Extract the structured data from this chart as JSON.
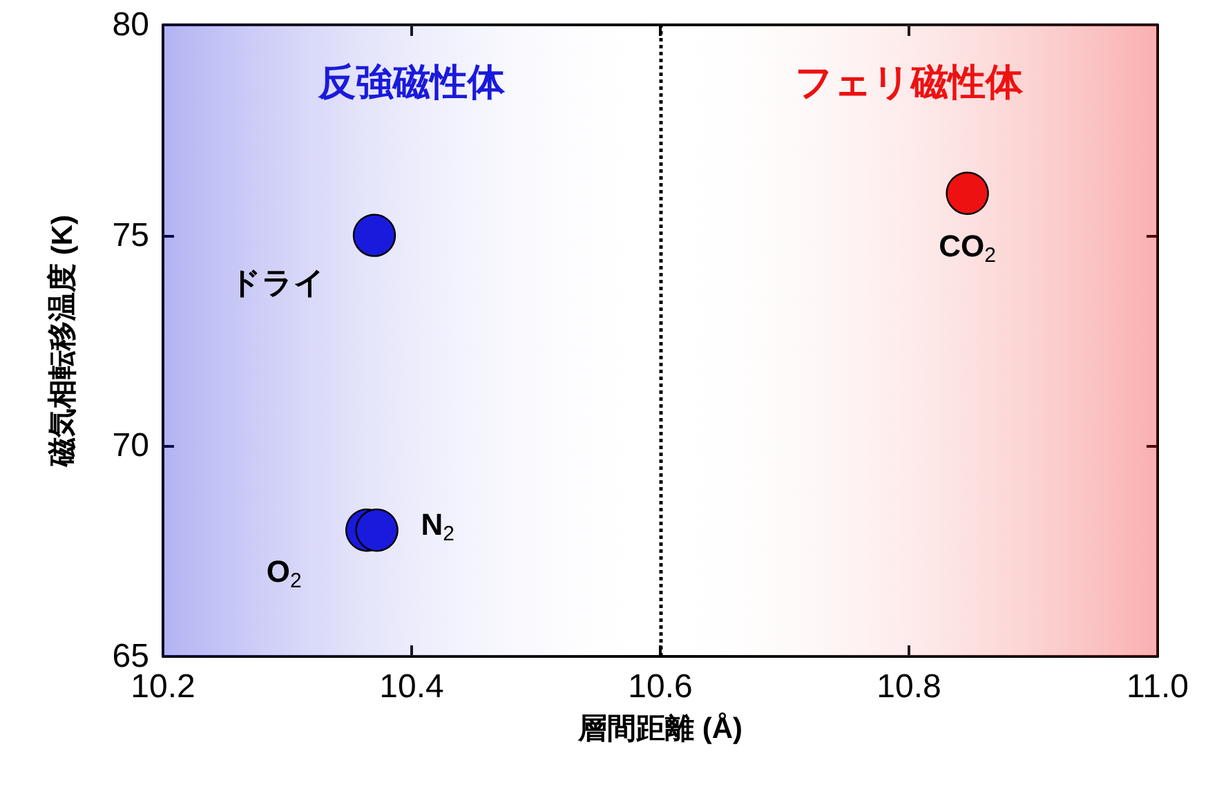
{
  "chart_data": {
    "type": "scatter",
    "xlabel": "層間距離 (Å)",
    "ylabel": "磁気相転移温度 (K)",
    "series": [
      {
        "color": "#1a1adc",
        "x": [
          10.37,
          10.364,
          10.372
        ],
        "values": [
          75,
          68,
          68
        ]
      },
      {
        "color": "#ee1111",
        "x": [
          10.847
        ],
        "values": [
          76
        ]
      }
    ],
    "xlim": [
      10.2,
      11.0
    ],
    "xticks": [
      {
        "value": 10.2,
        "label": "10.2"
      },
      {
        "value": 10.4,
        "label": "10.4"
      },
      {
        "value": 10.6,
        "label": "10.6"
      },
      {
        "value": 10.8,
        "label": "10.8"
      },
      {
        "value": 11.0,
        "label": "11.0"
      }
    ],
    "ylim": [
      65,
      80
    ],
    "yticks": [
      65,
      70,
      75,
      80
    ],
    "grid": false,
    "marker": "circle",
    "ref_lines": [
      {
        "axis": "x",
        "value": 10.6,
        "line_style": "dotted",
        "color": "#000000"
      }
    ],
    "bands": [
      {
        "axis": "x",
        "from": 10.2,
        "to": 10.6,
        "label": "反強磁性体",
        "color": "#1a1adc"
      },
      {
        "axis": "x",
        "from": 10.6,
        "to": 11.0,
        "label": "フェリ磁性体",
        "color": "#ee1111"
      }
    ],
    "annotations": [
      {
        "text": "ドライ",
        "x": 10.37,
        "y": 75
      },
      {
        "text": "O$_{2}$",
        "x": 10.364,
        "y": 68
      },
      {
        "text": "N$_{2}$",
        "x": 10.372,
        "y": 68
      },
      {
        "text": "CO$_{2}$",
        "x": 10.847,
        "y": 76
      }
    ]
  }
}
